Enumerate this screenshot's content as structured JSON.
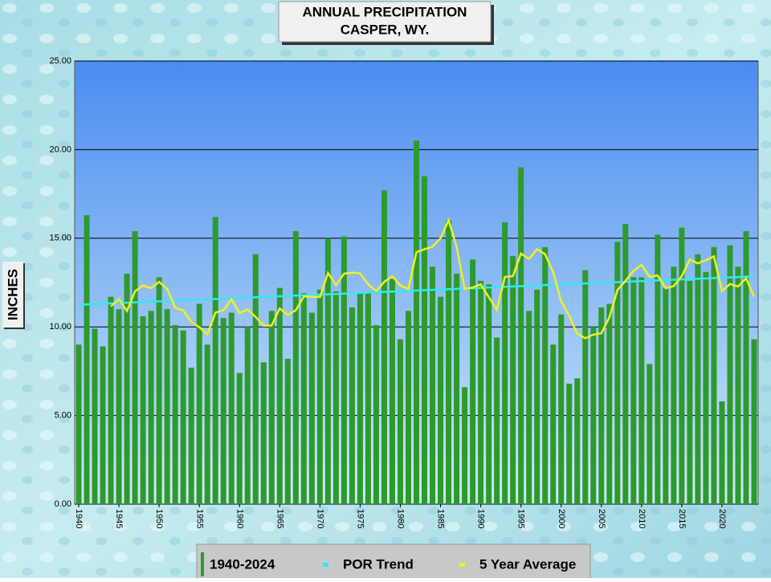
{
  "chart_data": {
    "type": "bar",
    "title": "ANNUAL  PRECIPITATION",
    "subtitle": "CASPER, WY.",
    "y_label": "INCHES",
    "x": [
      1940,
      1941,
      1942,
      1943,
      1944,
      1945,
      1946,
      1947,
      1948,
      1949,
      1950,
      1951,
      1952,
      1953,
      1954,
      1955,
      1956,
      1957,
      1958,
      1959,
      1960,
      1961,
      1962,
      1963,
      1964,
      1965,
      1966,
      1967,
      1968,
      1969,
      1970,
      1971,
      1972,
      1973,
      1974,
      1975,
      1976,
      1977,
      1978,
      1979,
      1980,
      1981,
      1982,
      1983,
      1984,
      1985,
      1986,
      1987,
      1988,
      1989,
      1990,
      1991,
      1992,
      1993,
      1994,
      1995,
      1996,
      1997,
      1998,
      1999,
      2000,
      2001,
      2002,
      2003,
      2004,
      2005,
      2006,
      2007,
      2008,
      2009,
      2010,
      2011,
      2012,
      2013,
      2014,
      2015,
      2016,
      2017,
      2018,
      2019,
      2020,
      2021,
      2022,
      2023,
      2024
    ],
    "series": [
      {
        "name": "1940-2024",
        "type": "bar",
        "color": "#2e9a2e",
        "values": [
          9.0,
          16.3,
          9.9,
          8.9,
          11.7,
          11.0,
          13.0,
          15.4,
          10.6,
          10.9,
          12.8,
          11.0,
          10.1,
          9.8,
          7.7,
          11.3,
          9.0,
          16.2,
          10.5,
          10.8,
          7.4,
          10.0,
          14.1,
          8.0,
          10.9,
          12.2,
          8.2,
          15.4,
          11.9,
          10.8,
          12.1,
          15.0,
          12.0,
          15.1,
          11.1,
          11.9,
          11.9,
          10.1,
          17.7,
          12.7,
          9.3,
          10.9,
          20.5,
          18.5,
          13.4,
          11.7,
          16.0,
          13.0,
          6.6,
          13.8,
          12.6,
          12.4,
          9.4,
          15.9,
          14.0,
          19.0,
          10.9,
          12.1,
          14.5,
          9.0,
          10.7,
          6.8,
          7.1,
          13.2,
          10.0,
          11.1,
          11.3,
          14.8,
          15.8,
          12.8,
          12.8,
          7.9,
          15.2,
          12.2,
          13.4,
          15.6,
          12.6,
          14.1,
          13.1,
          14.5,
          5.8,
          14.6,
          13.4,
          15.4,
          9.3
        ]
      },
      {
        "name": "POR Trend",
        "type": "line",
        "color": "#33e8f0",
        "x": [
          1940,
          2024
        ],
        "values": [
          11.25,
          12.85
        ]
      },
      {
        "name": "5 Year Average",
        "type": "line",
        "color": "#f0f020",
        "values": [
          null,
          null,
          null,
          null,
          11.16,
          11.56,
          10.9,
          12.0,
          12.34,
          12.18,
          12.54,
          12.14,
          11.08,
          10.92,
          10.28,
          9.98,
          9.58,
          10.8,
          10.94,
          11.56,
          10.78,
          10.98,
          10.56,
          10.06,
          10.08,
          11.04,
          10.68,
          10.94,
          11.72,
          11.7,
          11.68,
          13.04,
          12.36,
          13.0,
          13.06,
          13.02,
          12.4,
          12.02,
          12.54,
          12.86,
          12.34,
          12.14,
          14.22,
          14.38,
          14.52,
          15.0,
          16.02,
          14.52,
          12.14,
          12.22,
          12.4,
          11.68,
          10.96,
          12.82,
          12.86,
          14.14,
          13.84,
          14.38,
          14.1,
          13.1,
          11.44,
          10.62,
          9.62,
          9.36,
          9.56,
          9.64,
          10.54,
          12.08,
          12.6,
          13.16,
          13.5,
          12.82,
          12.9,
          12.18,
          12.3,
          12.86,
          13.8,
          13.58,
          13.76,
          13.98,
          12.02,
          12.42,
          12.28,
          12.74,
          11.7
        ]
      }
    ],
    "xlim": [
      1939.5,
      2024.5
    ],
    "xticks": [
      1940,
      1945,
      1950,
      1955,
      1960,
      1965,
      1970,
      1975,
      1980,
      1985,
      1990,
      1995,
      2000,
      2005,
      2010,
      2015,
      2020
    ],
    "ylim": [
      0,
      25
    ],
    "yticks": [
      {
        "value": 0,
        "label": "0.00"
      },
      {
        "value": 5,
        "label": "5.00"
      },
      {
        "value": 10,
        "label": "10.00"
      },
      {
        "value": 15,
        "label": "15.00"
      },
      {
        "value": 20,
        "label": "20.00"
      },
      {
        "value": 25,
        "label": "25.00"
      }
    ],
    "grid": true,
    "legend": "bottom"
  }
}
